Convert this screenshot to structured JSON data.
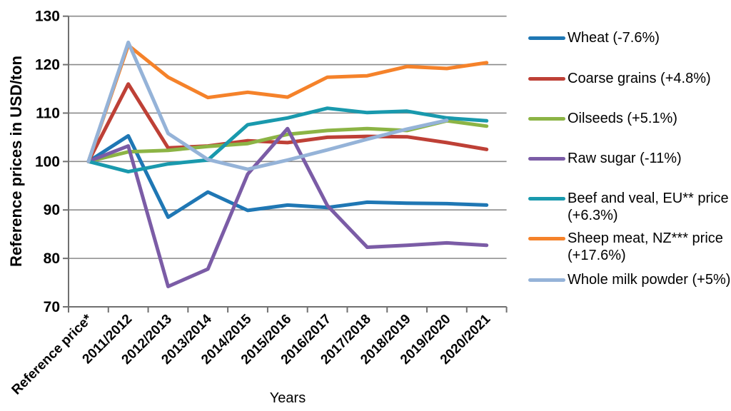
{
  "chart_data": {
    "type": "line",
    "title": "",
    "xlabel": "Years",
    "ylabel": "Reference prices in USD/ton",
    "ylim": [
      70,
      130
    ],
    "ytick_step": 10,
    "grid": "horizontal",
    "legend_position": "right",
    "categories": [
      "Reference price*",
      "2011/2012",
      "2012/2013",
      "2013/2014",
      "2014/2015",
      "2015/2016",
      "2016/2017",
      "2017/2018",
      "2018/2019",
      "2019/2020",
      "2020/2021"
    ],
    "series": [
      {
        "name": "Wheat (-7.6%)",
        "color": "#1F77B4",
        "values": [
          100,
          105.3,
          88.5,
          93.7,
          89.9,
          91.0,
          90.5,
          91.6,
          91.4,
          91.3,
          91.0
        ]
      },
      {
        "name": "Coarse grains (+4.8%)",
        "color": "#BE4036",
        "values": [
          100,
          116.0,
          102.8,
          103.2,
          104.3,
          103.9,
          105.0,
          105.2,
          105.1,
          103.9,
          102.5
        ]
      },
      {
        "name": "Oilseeds (+5.1%)",
        "color": "#8CB445",
        "values": [
          100,
          102.0,
          102.3,
          103.1,
          103.7,
          105.6,
          106.4,
          106.8,
          106.4,
          108.4,
          107.3
        ]
      },
      {
        "name": "Raw sugar (-11%)",
        "color": "#7B5CA6",
        "values": [
          100,
          103.2,
          74.2,
          77.8,
          97.4,
          106.8,
          90.9,
          82.3,
          82.7,
          83.2,
          82.7
        ]
      },
      {
        "name": "Beef and veal, EU** price (+6.3%)",
        "color": "#1999AD",
        "values": [
          100,
          97.9,
          99.5,
          100.3,
          107.6,
          109.0,
          111.0,
          110.1,
          110.4,
          109.0,
          108.4
        ]
      },
      {
        "name": "Sheep meat, NZ*** price (+17.6%)",
        "color": "#F5822A",
        "values": [
          100,
          124.0,
          117.4,
          113.2,
          114.3,
          113.3,
          117.4,
          117.7,
          119.6,
          119.2,
          120.4
        ]
      },
      {
        "name": "Whole milk powder (+5%)",
        "color": "#95B3D8",
        "values": [
          100,
          124.6,
          105.8,
          100.4,
          98.4,
          100.3,
          102.4,
          104.6,
          106.7,
          108.5,
          null
        ]
      }
    ]
  },
  "colors": {
    "gridline": "#8A8A8A",
    "axis": "#707070",
    "text": "#000000",
    "background": "#FFFFFF"
  }
}
